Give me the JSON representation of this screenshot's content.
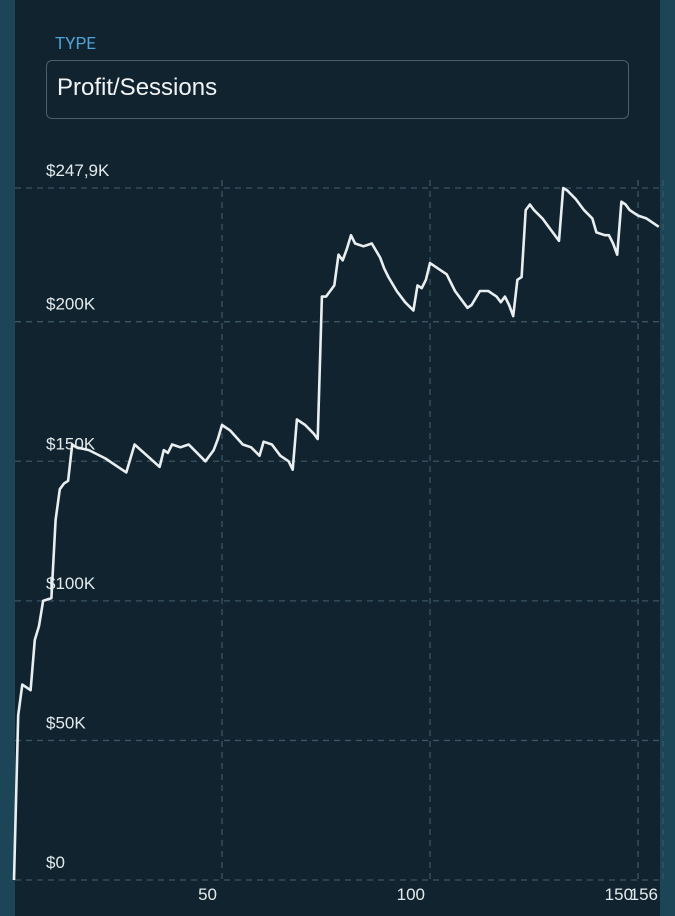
{
  "form": {
    "label": "TYPE",
    "value": "Profit/Sessions"
  },
  "chart_data": {
    "type": "line",
    "x": [
      0,
      1,
      2,
      4,
      5,
      6,
      7,
      9,
      10,
      11,
      12,
      13,
      14,
      15,
      18,
      22,
      25,
      27,
      29,
      32,
      35,
      36,
      37,
      38,
      40,
      42,
      44,
      46,
      48,
      49,
      50,
      52,
      55,
      57,
      59,
      60,
      62,
      64,
      66,
      67,
      68,
      70,
      72,
      73,
      74,
      75,
      76,
      77,
      78,
      79,
      80,
      81,
      82,
      84,
      86,
      88,
      89,
      90,
      92,
      94,
      96,
      97,
      98,
      99,
      100,
      102,
      104,
      106,
      108,
      109,
      110,
      112,
      114,
      115,
      116,
      117,
      118,
      119,
      120,
      121,
      122,
      123,
      124,
      125,
      127,
      129,
      131,
      132,
      133,
      135,
      137,
      139,
      140,
      142,
      143,
      144,
      145,
      146,
      147,
      148,
      150,
      152,
      155
    ],
    "series": [
      {
        "color": "#e9eef0",
        "values": [
          0,
          59000,
          70000,
          68000,
          86000,
          91000,
          100000,
          101000,
          129000,
          140000,
          142000,
          143000,
          156000,
          155000,
          154000,
          151000,
          148000,
          146000,
          156000,
          152000,
          148000,
          154000,
          153000,
          156000,
          155000,
          156000,
          153000,
          150000,
          154000,
          158000,
          163000,
          161000,
          156000,
          155000,
          152000,
          157000,
          156000,
          152000,
          150000,
          147000,
          165000,
          163000,
          160000,
          158000,
          209000,
          209000,
          211000,
          213000,
          224000,
          222000,
          226000,
          231000,
          228000,
          227000,
          228000,
          223000,
          219000,
          216000,
          211000,
          207000,
          204000,
          213000,
          212000,
          215000,
          221000,
          219000,
          217000,
          211000,
          207000,
          205000,
          206000,
          211000,
          211000,
          210000,
          209000,
          207000,
          209000,
          206000,
          202000,
          215000,
          216000,
          240000,
          242000,
          240000,
          237000,
          233000,
          229000,
          247900,
          247000,
          244000,
          240000,
          237000,
          232000,
          231000,
          231000,
          228000,
          224000,
          243000,
          242000,
          240000,
          238000,
          237000,
          234000
        ]
      }
    ],
    "xlim": [
      0,
      156
    ],
    "xticks": [
      50,
      100,
      150,
      156
    ],
    "ylim": [
      0,
      247900
    ],
    "yticks": [
      {
        "value": 0,
        "label": "$0"
      },
      {
        "value": 50000,
        "label": "$50K"
      },
      {
        "value": 100000,
        "label": "$100K"
      },
      {
        "value": 150000,
        "label": "$150K"
      },
      {
        "value": 200000,
        "label": "$200K"
      },
      {
        "value": 247900,
        "label": "$247,9K"
      }
    ],
    "grid": true
  }
}
